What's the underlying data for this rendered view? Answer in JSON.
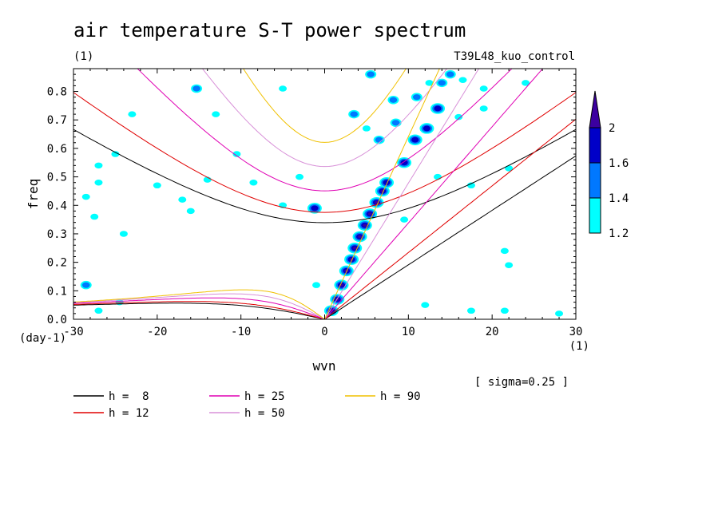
{
  "chart_data": {
    "type": "contour",
    "title": "air temperature S-T power spectrum",
    "subtitle_left": "(1)",
    "subtitle_right": "T39L48_kuo_control",
    "xlabel": "wvn",
    "ylabel": "freq",
    "x_unit": "(1)",
    "y_unit": "(day-1)",
    "xlim": [
      -30,
      30
    ],
    "ylim": [
      0,
      0.88
    ],
    "x_ticks": [
      -30,
      -20,
      -10,
      0,
      10,
      20,
      30
    ],
    "x_tick_labels": [
      "-30",
      "-20",
      "-10",
      "0",
      "10",
      "20",
      "30"
    ],
    "y_ticks": [
      0,
      0.1,
      0.2,
      0.3,
      0.4,
      0.5,
      0.6,
      0.7,
      0.8
    ],
    "y_tick_labels": [
      "0.0",
      "0.1",
      "0.2",
      "0.3",
      "0.4",
      "0.5",
      "0.6",
      "0.7",
      "0.8"
    ],
    "note": "[ sigma=0.25 ]",
    "colorbar": {
      "levels": [
        1.2,
        1.4,
        1.6,
        2
      ],
      "labels": [
        "1.2",
        "1.4",
        "1.6",
        "2"
      ],
      "colors": [
        "#00ffff",
        "#0078ff",
        "#0000c8",
        "#3c00a0"
      ]
    },
    "dispersion_curves": [
      {
        "name": "h =  8",
        "h": 8,
        "color": "#000000"
      },
      {
        "name": "h = 12",
        "h": 12,
        "color": "#e00000"
      },
      {
        "name": "h = 25",
        "h": 25,
        "color": "#e000b4"
      },
      {
        "name": "h = 50",
        "h": 50,
        "color": "#d890d8"
      },
      {
        "name": "h = 90",
        "h": 90,
        "color": "#f0c000"
      }
    ],
    "contour_blobs": [
      {
        "x": 0.8,
        "y": 0.03,
        "level": 2
      },
      {
        "x": 1.5,
        "y": 0.07,
        "level": 2
      },
      {
        "x": 2.0,
        "y": 0.12,
        "level": 2
      },
      {
        "x": 2.6,
        "y": 0.17,
        "level": 2
      },
      {
        "x": 3.2,
        "y": 0.21,
        "level": 2
      },
      {
        "x": 3.6,
        "y": 0.25,
        "level": 2
      },
      {
        "x": 4.2,
        "y": 0.29,
        "level": 2
      },
      {
        "x": 4.8,
        "y": 0.33,
        "level": 2
      },
      {
        "x": 5.4,
        "y": 0.37,
        "level": 2
      },
      {
        "x": 6.2,
        "y": 0.41,
        "level": 2
      },
      {
        "x": 6.9,
        "y": 0.45,
        "level": 2
      },
      {
        "x": 7.4,
        "y": 0.48,
        "level": 1.6
      },
      {
        "x": 9.5,
        "y": 0.55,
        "level": 1.6
      },
      {
        "x": 10.8,
        "y": 0.63,
        "level": 1.6
      },
      {
        "x": 12.2,
        "y": 0.67,
        "level": 1.6
      },
      {
        "x": 13.5,
        "y": 0.74,
        "level": 1.6
      },
      {
        "x": 14.0,
        "y": 0.83,
        "level": 1.4
      },
      {
        "x": 11.0,
        "y": 0.78,
        "level": 1.4
      },
      {
        "x": 8.5,
        "y": 0.69,
        "level": 1.4
      },
      {
        "x": -1.2,
        "y": 0.39,
        "level": 1.6
      },
      {
        "x": -28.5,
        "y": 0.12,
        "level": 1.4
      },
      {
        "x": -15.3,
        "y": 0.81,
        "level": 1.4
      },
      {
        "x": 3.5,
        "y": 0.72,
        "level": 1.4
      },
      {
        "x": 6.5,
        "y": 0.63,
        "level": 1.4
      },
      {
        "x": 8.2,
        "y": 0.77,
        "level": 1.4
      },
      {
        "x": 5.5,
        "y": 0.86,
        "level": 1.4
      },
      {
        "x": 15.0,
        "y": 0.86,
        "level": 1.4
      },
      {
        "x": 16.5,
        "y": 0.84,
        "level": 1.2
      },
      {
        "x": 19.0,
        "y": 0.81,
        "level": 1.2
      },
      {
        "x": 24.0,
        "y": 0.83,
        "level": 1.2
      },
      {
        "x": -27.0,
        "y": 0.48,
        "level": 1.2
      },
      {
        "x": -27.5,
        "y": 0.36,
        "level": 1.2
      },
      {
        "x": -28.5,
        "y": 0.43,
        "level": 1.2
      },
      {
        "x": -27.0,
        "y": 0.54,
        "level": 1.2
      },
      {
        "x": -25.0,
        "y": 0.58,
        "level": 1.2
      },
      {
        "x": -23.0,
        "y": 0.72,
        "level": 1.2
      },
      {
        "x": -20.0,
        "y": 0.47,
        "level": 1.2
      },
      {
        "x": -17.0,
        "y": 0.42,
        "level": 1.2
      },
      {
        "x": -16.0,
        "y": 0.38,
        "level": 1.2
      },
      {
        "x": -14.0,
        "y": 0.49,
        "level": 1.2
      },
      {
        "x": -10.5,
        "y": 0.58,
        "level": 1.2
      },
      {
        "x": -5.0,
        "y": 0.4,
        "level": 1.2
      },
      {
        "x": -5.0,
        "y": 0.81,
        "level": 1.2
      },
      {
        "x": -3.0,
        "y": 0.5,
        "level": 1.2
      },
      {
        "x": -27.0,
        "y": 0.03,
        "level": 1.2
      },
      {
        "x": -24.0,
        "y": 0.3,
        "level": 1.2
      },
      {
        "x": -24.5,
        "y": 0.06,
        "level": 1.2
      },
      {
        "x": -13.0,
        "y": 0.72,
        "level": 1.2
      },
      {
        "x": -8.5,
        "y": 0.48,
        "level": 1.2
      },
      {
        "x": -1.0,
        "y": 0.12,
        "level": 1.2
      },
      {
        "x": 9.5,
        "y": 0.35,
        "level": 1.2
      },
      {
        "x": 12.5,
        "y": 0.83,
        "level": 1.2
      },
      {
        "x": 13.5,
        "y": 0.5,
        "level": 1.2
      },
      {
        "x": 16.0,
        "y": 0.71,
        "level": 1.2
      },
      {
        "x": 17.5,
        "y": 0.47,
        "level": 1.2
      },
      {
        "x": 21.5,
        "y": 0.24,
        "level": 1.2
      },
      {
        "x": 22.0,
        "y": 0.19,
        "level": 1.2
      },
      {
        "x": 21.5,
        "y": 0.03,
        "level": 1.2
      },
      {
        "x": 19.0,
        "y": 0.74,
        "level": 1.2
      },
      {
        "x": 17.5,
        "y": 0.03,
        "level": 1.2
      },
      {
        "x": 22.0,
        "y": 0.53,
        "level": 1.2
      },
      {
        "x": 28.0,
        "y": 0.02,
        "level": 1.2
      },
      {
        "x": 12.0,
        "y": 0.05,
        "level": 1.2
      },
      {
        "x": 5.0,
        "y": 0.67,
        "level": 1.2
      }
    ]
  },
  "legend": {
    "h8": "h =  8",
    "h12": "h = 12",
    "h25": "h = 25",
    "h50": "h = 50",
    "h90": "h = 90"
  }
}
